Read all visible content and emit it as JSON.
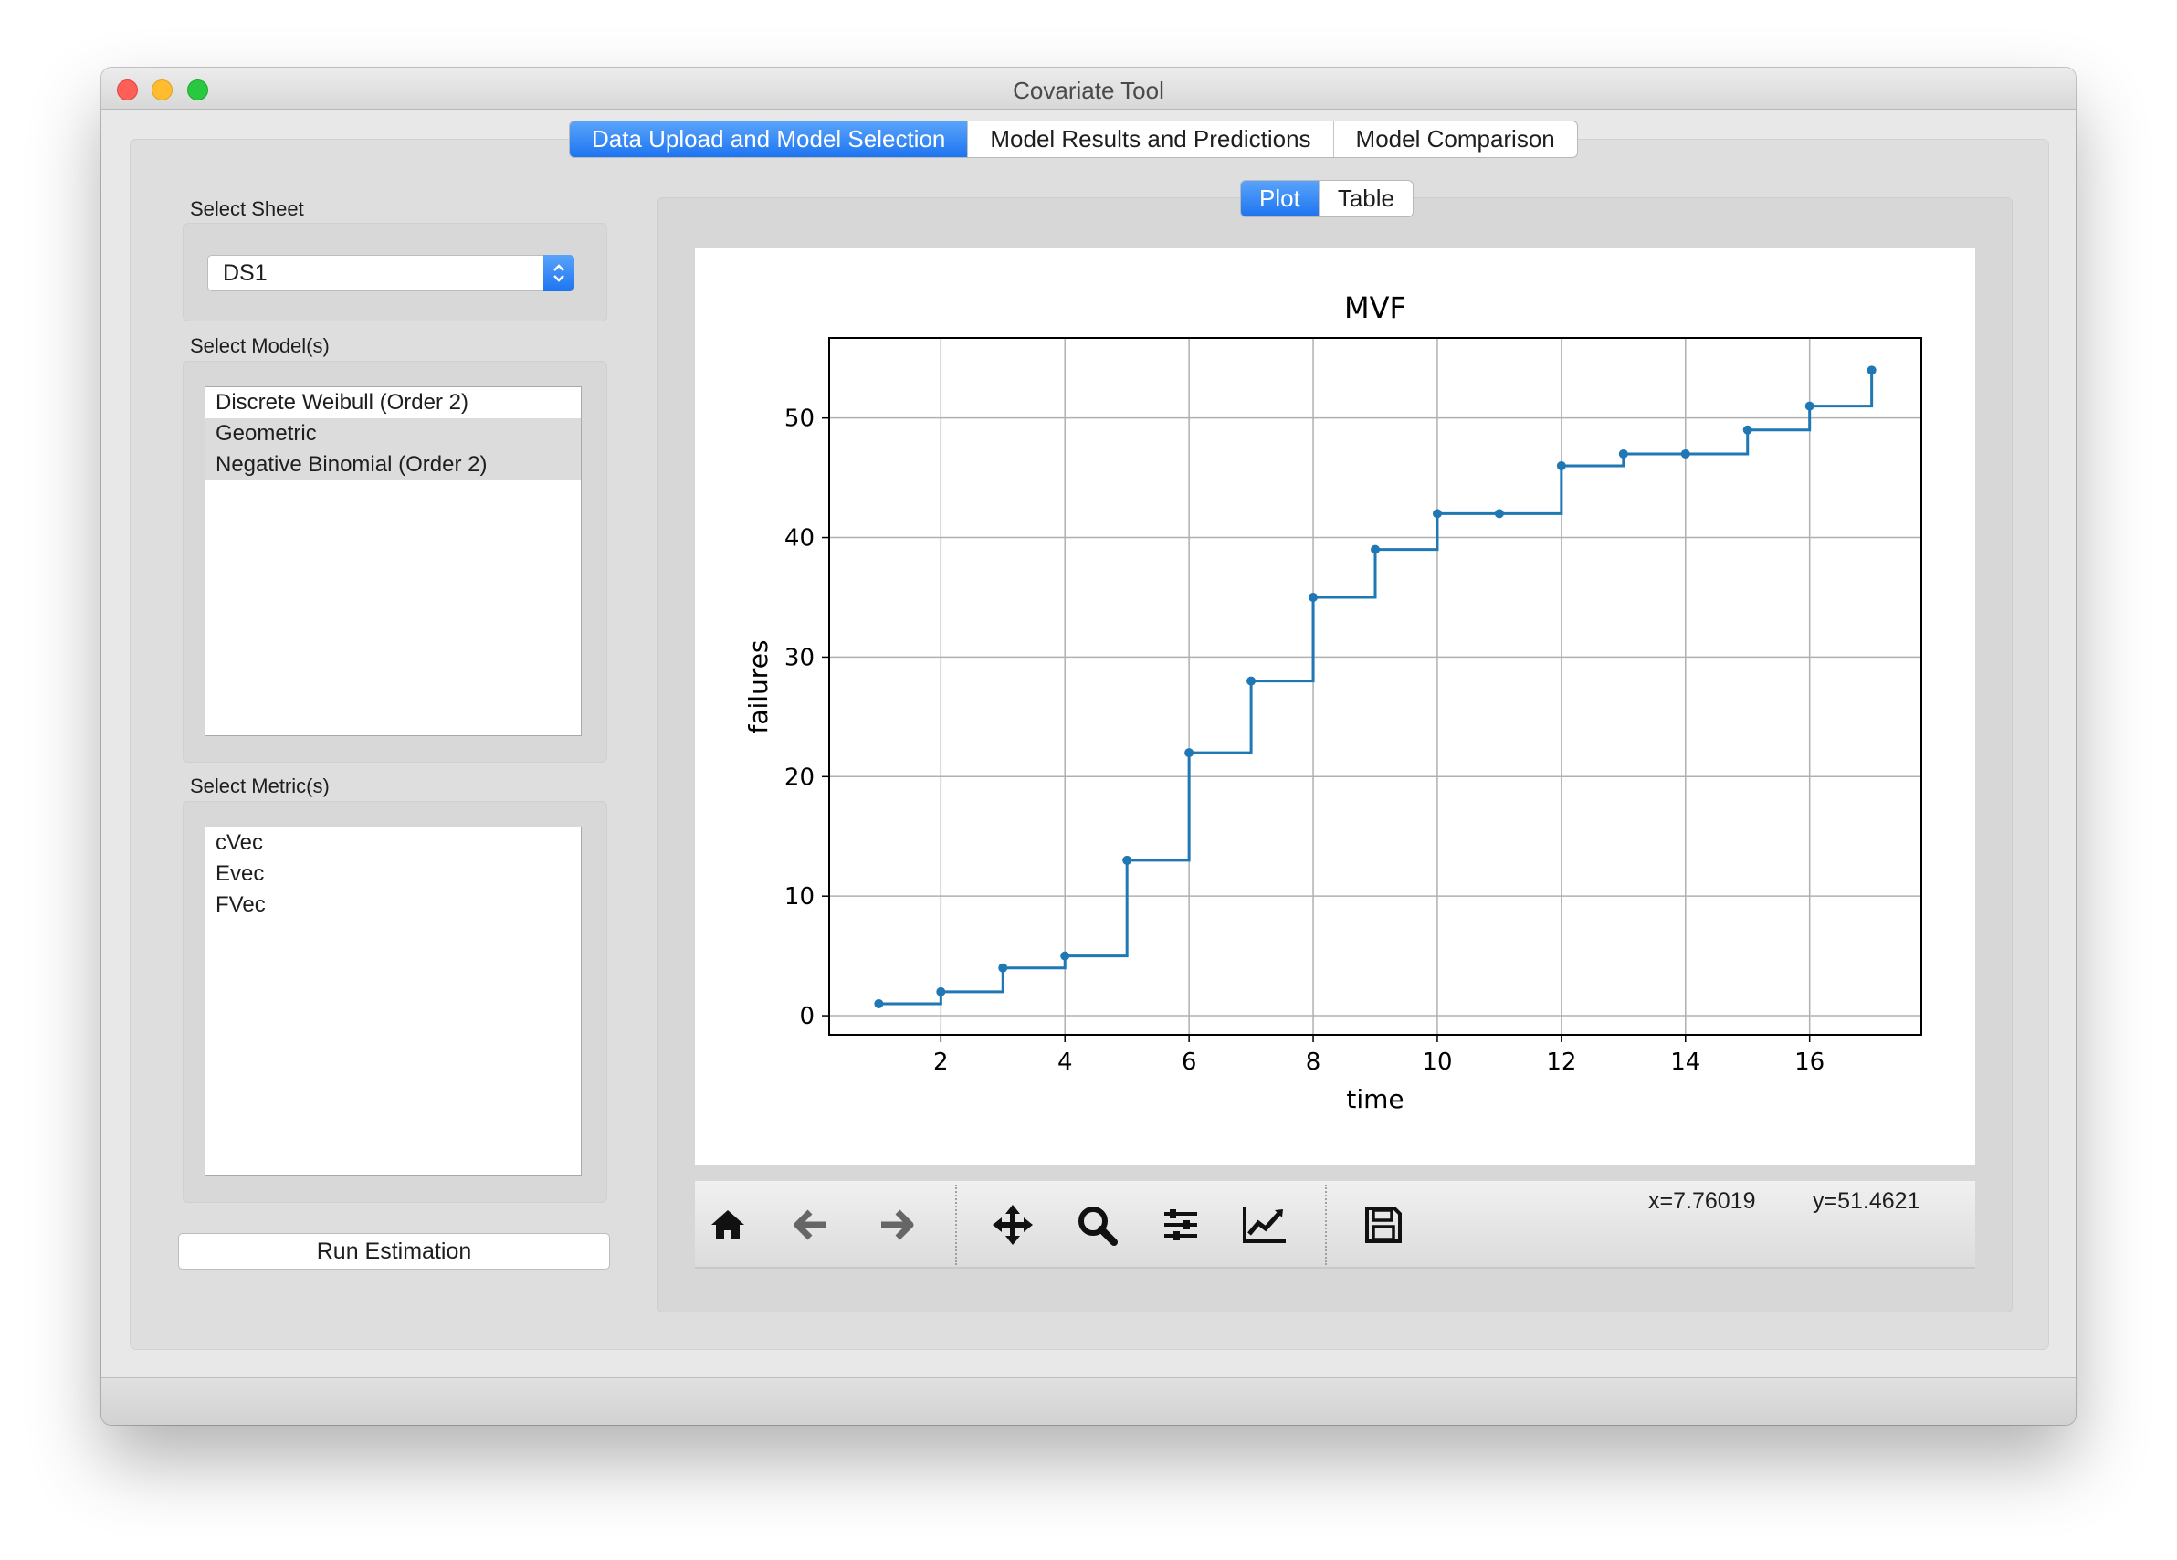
{
  "window": {
    "title": "Covariate Tool"
  },
  "tabs": [
    "Data Upload and Model Selection",
    "Model Results and Predictions",
    "Model Comparison"
  ],
  "sidebar": {
    "sheet_label": "Select Sheet",
    "sheet_value": "DS1",
    "model_label": "Select Model(s)",
    "models": [
      {
        "label": "Discrete Weibull (Order 2)",
        "selected": false
      },
      {
        "label": "Geometric",
        "selected": true
      },
      {
        "label": "Negative Binomial (Order 2)",
        "selected": true
      }
    ],
    "metric_label": "Select Metric(s)",
    "metrics": [
      "cVec",
      "Evec",
      "FVec"
    ],
    "run_button": "Run Estimation"
  },
  "plot_tabs": [
    "Plot",
    "Table"
  ],
  "toolbar": {
    "icons": [
      "home-icon",
      "back-arrow-icon",
      "forward-arrow-icon",
      "pan-icon",
      "zoom-icon",
      "subplots-config-icon",
      "axes-edit-icon",
      "save-icon"
    ],
    "coord_x": "x=7.76019",
    "coord_y": "y=51.4621"
  },
  "chart_data": {
    "type": "line",
    "drawstyle": "steps-post",
    "title": "MVF",
    "xlabel": "time",
    "ylabel": "failures",
    "xlim": [
      0.2,
      17.8
    ],
    "ylim": [
      -1.6,
      56.7
    ],
    "x_ticks": [
      2,
      4,
      6,
      8,
      10,
      12,
      14,
      16
    ],
    "y_ticks": [
      0,
      10,
      20,
      30,
      40,
      50
    ],
    "grid": true,
    "color": "#1f77b4",
    "x": [
      1,
      2,
      3,
      4,
      5,
      6,
      7,
      8,
      9,
      10,
      11,
      12,
      13,
      14,
      15,
      16,
      17
    ],
    "y": [
      1,
      2,
      4,
      5,
      13,
      22,
      28,
      35,
      39,
      42,
      42,
      46,
      47,
      47,
      49,
      51,
      54
    ]
  }
}
